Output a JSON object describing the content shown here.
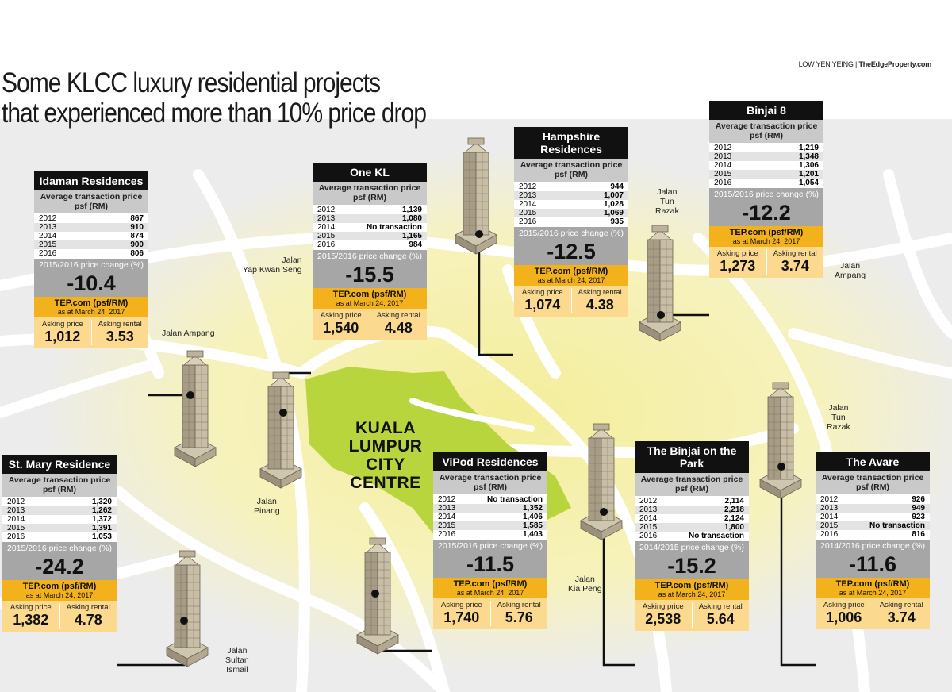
{
  "title_line1": "Some KLCC luxury residential projects",
  "title_line2": "that experienced more than 10% price drop",
  "credit_author": "LOW YEN YEING",
  "credit_sep": "|",
  "credit_site": "TheEdgeProperty.com",
  "city_centre": [
    "KUALA",
    "LUMPUR",
    "CITY",
    "CENTRE"
  ],
  "roads": {
    "ampang_left": "Jalan Ampang",
    "yap_kwan_seng": [
      "Jalan",
      "Yap Kwan Seng"
    ],
    "tun_razak_top": [
      "Jalan",
      "Tun",
      "Razak"
    ],
    "ampang_right": [
      "Jalan",
      "Ampang"
    ],
    "tun_razak_right": [
      "Jalan",
      "Tun",
      "Razak"
    ],
    "pinang": [
      "Jalan",
      "Pinang"
    ],
    "kia_peng": [
      "Jalan",
      "Kia Peng"
    ],
    "sultan_ismail": [
      "Jalan",
      "Sultan",
      "Ismail"
    ]
  },
  "colors": {
    "map_bg": "#ececec",
    "glow": "#f4ee9a",
    "park": "#b9d53e",
    "road": "#ffffff",
    "header": "#111111",
    "grey": "#a6a6a6",
    "orange": "#f3b21b",
    "light_orange": "#fbd98e"
  },
  "projects": [
    {
      "name": "Idaman Residences",
      "avg": "Average transaction price psf (RM)",
      "rows": [
        [
          "2012",
          "867"
        ],
        [
          "2013",
          "910"
        ],
        [
          "2014",
          "874"
        ],
        [
          "2015",
          "900"
        ],
        [
          "2016",
          "806"
        ]
      ],
      "change_label": "2015/2016 price change (%)",
      "change": "-10.4",
      "tep": "TEP.com (psf/RM)",
      "tep_date": "as at March 24, 2017",
      "ask_price_label": "Asking price",
      "ask_price": "1,012",
      "ask_rental_label": "Asking rental",
      "ask_rental": "3.53"
    },
    {
      "name": "One KL",
      "avg": "Average transaction price psf (RM)",
      "rows": [
        [
          "2012",
          "1,139"
        ],
        [
          "2013",
          "1,080"
        ],
        [
          "2014",
          "No transaction"
        ],
        [
          "2015",
          "1,165"
        ],
        [
          "2016",
          "984"
        ]
      ],
      "change_label": "2015/2016 price change (%)",
      "change": "-15.5",
      "tep": "TEP.com (psf/RM)",
      "tep_date": "as at March 24, 2017",
      "ask_price_label": "Asking price",
      "ask_price": "1,540",
      "ask_rental_label": "Asking rental",
      "ask_rental": "4.48"
    },
    {
      "name": "Hampshire Residences",
      "avg": "Average transaction price psf (RM)",
      "rows": [
        [
          "2012",
          "944"
        ],
        [
          "2013",
          "1,007"
        ],
        [
          "2014",
          "1,028"
        ],
        [
          "2015",
          "1,069"
        ],
        [
          "2016",
          "935"
        ]
      ],
      "change_label": "2015/2016 price change (%)",
      "change": "-12.5",
      "tep": "TEP.com (psf/RM)",
      "tep_date": "as at March 24, 2017",
      "ask_price_label": "Asking price",
      "ask_price": "1,074",
      "ask_rental_label": "Asking rental",
      "ask_rental": "4.38"
    },
    {
      "name": "Binjai 8",
      "avg": "Average transaction price psf (RM)",
      "rows": [
        [
          "2012",
          "1,219"
        ],
        [
          "2013",
          "1,348"
        ],
        [
          "2014",
          "1,306"
        ],
        [
          "2015",
          "1,201"
        ],
        [
          "2016",
          "1,054"
        ]
      ],
      "change_label": "2015/2016 price change (%)",
      "change": "-12.2",
      "tep": "TEP.com (psf/RM)",
      "tep_date": "as at March 24, 2017",
      "ask_price_label": "Asking price",
      "ask_price": "1,273",
      "ask_rental_label": "Asking rental",
      "ask_rental": "3.74"
    },
    {
      "name": "St. Mary Residence",
      "avg": "Average transaction price psf (RM)",
      "rows": [
        [
          "2012",
          "1,320"
        ],
        [
          "2013",
          "1,262"
        ],
        [
          "2014",
          "1,372"
        ],
        [
          "2015",
          "1,391"
        ],
        [
          "2016",
          "1,053"
        ]
      ],
      "change_label": "2015/2016 price change (%)",
      "change": "-24.2",
      "tep": "TEP.com (psf/RM)",
      "tep_date": "as at March 24, 2017",
      "ask_price_label": "Asking price",
      "ask_price": "1,382",
      "ask_rental_label": "Asking rental",
      "ask_rental": "4.78"
    },
    {
      "name": "ViPod Residences",
      "avg": "Average transaction price psf (RM)",
      "rows": [
        [
          "2012",
          "No transaction"
        ],
        [
          "2013",
          "1,352"
        ],
        [
          "2014",
          "1,406"
        ],
        [
          "2015",
          "1,585"
        ],
        [
          "2016",
          "1,403"
        ]
      ],
      "change_label": "2015/2016 price change (%)",
      "change": "-11.5",
      "tep": "TEP.com (psf/RM)",
      "tep_date": "as at March 24, 2017",
      "ask_price_label": "Asking price",
      "ask_price": "1,740",
      "ask_rental_label": "Asking rental",
      "ask_rental": "5.76"
    },
    {
      "name": "The Binjai on the Park",
      "avg": "Average transaction price psf (RM)",
      "rows": [
        [
          "2012",
          "2,114"
        ],
        [
          "2013",
          "2,218"
        ],
        [
          "2014",
          "2,124"
        ],
        [
          "2015",
          "1,800"
        ],
        [
          "2016",
          "No transaction"
        ]
      ],
      "change_label": "2014/2015 price change (%)",
      "change": "-15.2",
      "tep": "TEP.com (psf/RM)",
      "tep_date": "as at March 24, 2017",
      "ask_price_label": "Asking price",
      "ask_price": "2,538",
      "ask_rental_label": "Asking rental",
      "ask_rental": "5.64"
    },
    {
      "name": "The Avare",
      "avg": "Average transaction price psf (RM)",
      "rows": [
        [
          "2012",
          "926"
        ],
        [
          "2013",
          "949"
        ],
        [
          "2014",
          "923"
        ],
        [
          "2015",
          "No transaction"
        ],
        [
          "2016",
          "816"
        ]
      ],
      "change_label": "2014/2016 price change (%)",
      "change": "-11.6",
      "tep": "TEP.com (psf/RM)",
      "tep_date": "as at March 24, 2017",
      "ask_price_label": "Asking price",
      "ask_price": "1,006",
      "ask_rental_label": "Asking rental",
      "ask_rental": "3.74"
    }
  ]
}
